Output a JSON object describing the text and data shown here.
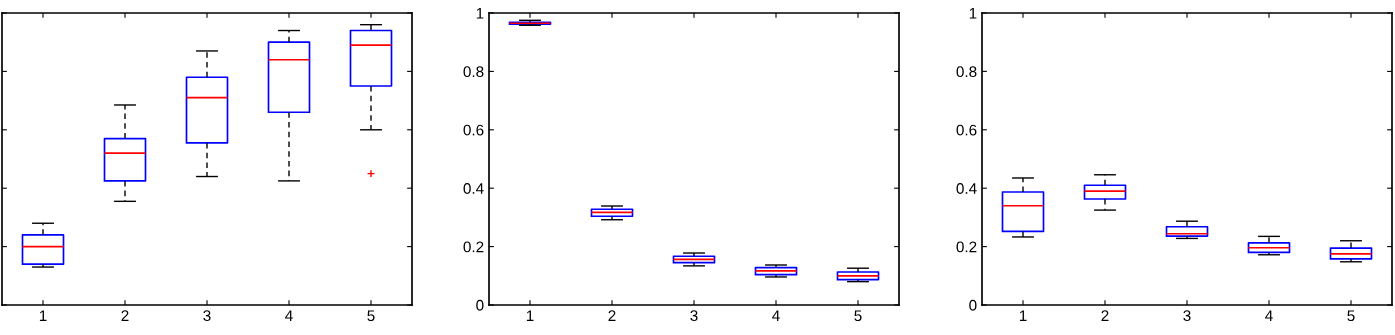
{
  "chart_data": [
    {
      "type": "box",
      "categories": [
        "1",
        "2",
        "3",
        "4",
        "5"
      ],
      "ylim": [
        0,
        1
      ],
      "yticks": [
        0,
        0.2,
        0.4,
        0.6,
        0.8,
        1
      ],
      "tick_labels": "x",
      "color": "#0000ff",
      "grid": false,
      "boxes": [
        {
          "low": 0.13,
          "q1": 0.14,
          "median": 0.2,
          "q3": 0.24,
          "high": 0.28
        },
        {
          "low": 0.355,
          "q1": 0.425,
          "median": 0.52,
          "q3": 0.57,
          "high": 0.685
        },
        {
          "low": 0.44,
          "q1": 0.555,
          "median": 0.71,
          "q3": 0.78,
          "high": 0.87
        },
        {
          "low": 0.425,
          "q1": 0.66,
          "median": 0.84,
          "q3": 0.9,
          "high": 0.94
        },
        {
          "low": 0.6,
          "q1": 0.75,
          "median": 0.89,
          "q3": 0.94,
          "high": 0.96,
          "outliers": [
            0.45
          ]
        }
      ]
    },
    {
      "type": "box",
      "categories": [
        "1",
        "2",
        "3",
        "4",
        "5"
      ],
      "ylim": [
        0,
        1
      ],
      "yticks": [
        0,
        0.2,
        0.4,
        0.6,
        0.8,
        1
      ],
      "color": "#0000ff",
      "grid": false,
      "boxes": [
        {
          "low": 0.958,
          "q1": 0.962,
          "median": 0.965,
          "q3": 0.968,
          "high": 0.975
        },
        {
          "low": 0.292,
          "q1": 0.304,
          "median": 0.317,
          "q3": 0.328,
          "high": 0.339
        },
        {
          "low": 0.134,
          "q1": 0.145,
          "median": 0.156,
          "q3": 0.167,
          "high": 0.178
        },
        {
          "low": 0.096,
          "q1": 0.104,
          "median": 0.117,
          "q3": 0.128,
          "high": 0.137
        },
        {
          "low": 0.08,
          "q1": 0.087,
          "median": 0.1,
          "q3": 0.113,
          "high": 0.126
        }
      ]
    },
    {
      "type": "box",
      "categories": [
        "1",
        "2",
        "3",
        "4",
        "5"
      ],
      "ylim": [
        0,
        1
      ],
      "yticks": [
        0,
        0.2,
        0.4,
        0.6,
        0.8,
        1
      ],
      "color": "#0000ff",
      "grid": false,
      "boxes": [
        {
          "low": 0.233,
          "q1": 0.252,
          "median": 0.34,
          "q3": 0.387,
          "high": 0.435
        },
        {
          "low": 0.325,
          "q1": 0.363,
          "median": 0.39,
          "q3": 0.41,
          "high": 0.446
        },
        {
          "low": 0.228,
          "q1": 0.236,
          "median": 0.244,
          "q3": 0.268,
          "high": 0.287
        },
        {
          "low": 0.172,
          "q1": 0.18,
          "median": 0.196,
          "q3": 0.213,
          "high": 0.235
        },
        {
          "low": 0.148,
          "q1": 0.158,
          "median": 0.175,
          "q3": 0.195,
          "high": 0.22
        }
      ]
    }
  ]
}
